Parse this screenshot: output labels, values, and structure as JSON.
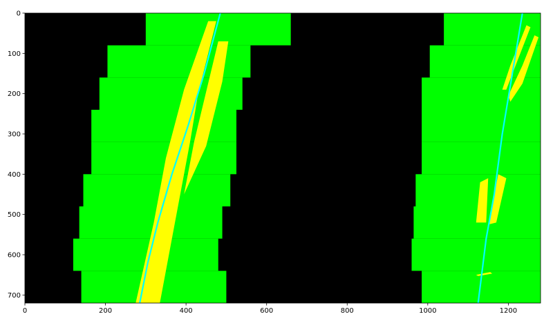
{
  "chart_data": {
    "type": "image",
    "description_free": true,
    "x_ticks": [
      "0",
      "200",
      "400",
      "600",
      "800",
      "1000",
      "1200"
    ],
    "y_ticks": [
      "0",
      "100",
      "200",
      "300",
      "400",
      "500",
      "600",
      "700"
    ],
    "xlim": [
      0,
      1280
    ],
    "ylim": [
      720,
      0
    ],
    "y_inverted": true,
    "grid": false,
    "colors": {
      "background": "#000000",
      "window": "#00ff00",
      "lane_pixels": "#ffff00",
      "fit_line": "#00ffff",
      "axis": "#000000"
    },
    "search_windows": {
      "left": [
        {
          "y_range": [
            0,
            80
          ],
          "x_range": [
            300,
            660
          ]
        },
        {
          "y_range": [
            80,
            160
          ],
          "x_range": [
            205,
            560
          ]
        },
        {
          "y_range": [
            160,
            240
          ],
          "x_range": [
            185,
            540
          ]
        },
        {
          "y_range": [
            240,
            320
          ],
          "x_range": [
            165,
            525
          ]
        },
        {
          "y_range": [
            320,
            400
          ],
          "x_range": [
            165,
            525
          ]
        },
        {
          "y_range": [
            400,
            480
          ],
          "x_range": [
            145,
            510
          ]
        },
        {
          "y_range": [
            480,
            560
          ],
          "x_range": [
            135,
            490
          ]
        },
        {
          "y_range": [
            560,
            640
          ],
          "x_range": [
            120,
            480
          ]
        },
        {
          "y_range": [
            640,
            720
          ],
          "x_range": [
            140,
            500
          ]
        }
      ],
      "right": [
        {
          "y_range": [
            0,
            80
          ],
          "x_range": [
            1040,
            1280
          ]
        },
        {
          "y_range": [
            80,
            160
          ],
          "x_range": [
            1005,
            1280
          ]
        },
        {
          "y_range": [
            160,
            240
          ],
          "x_range": [
            985,
            1280
          ]
        },
        {
          "y_range": [
            240,
            320
          ],
          "x_range": [
            985,
            1280
          ]
        },
        {
          "y_range": [
            320,
            400
          ],
          "x_range": [
            985,
            1280
          ]
        },
        {
          "y_range": [
            400,
            480
          ],
          "x_range": [
            970,
            1280
          ]
        },
        {
          "y_range": [
            480,
            560
          ],
          "x_range": [
            965,
            1280
          ]
        },
        {
          "y_range": [
            560,
            640
          ],
          "x_range": [
            960,
            1280
          ]
        },
        {
          "y_range": [
            640,
            720
          ],
          "x_range": [
            985,
            1280
          ]
        }
      ]
    },
    "fit_lines": {
      "left": [
        [
          485,
          0
        ],
        [
          445,
          150
        ],
        [
          405,
          280
        ],
        [
          365,
          400
        ],
        [
          330,
          520
        ],
        [
          305,
          620
        ],
        [
          285,
          720
        ]
      ],
      "right": [
        [
          1235,
          0
        ],
        [
          1210,
          150
        ],
        [
          1185,
          300
        ],
        [
          1165,
          450
        ],
        [
          1145,
          560
        ],
        [
          1125,
          720
        ]
      ]
    },
    "lane_pixel_regions": {
      "left": [
        [
          [
            455,
            20
          ],
          [
            475,
            20
          ],
          [
            430,
            200
          ],
          [
            410,
            320
          ],
          [
            335,
            720
          ],
          [
            275,
            720
          ],
          [
            320,
            520
          ],
          [
            350,
            360
          ],
          [
            395,
            190
          ]
        ],
        [
          [
            480,
            70
          ],
          [
            505,
            70
          ],
          [
            490,
            170
          ],
          [
            450,
            330
          ],
          [
            395,
            450
          ],
          [
            420,
            320
          ]
        ]
      ],
      "right": [
        [
          [
            1245,
            30
          ],
          [
            1255,
            35
          ],
          [
            1220,
            125
          ],
          [
            1195,
            190
          ],
          [
            1185,
            190
          ],
          [
            1205,
            130
          ]
        ],
        [
          [
            1265,
            55
          ],
          [
            1275,
            60
          ],
          [
            1235,
            175
          ],
          [
            1205,
            220
          ],
          [
            1200,
            205
          ],
          [
            1235,
            130
          ]
        ],
        [
          [
            1130,
            420
          ],
          [
            1150,
            410
          ],
          [
            1145,
            520
          ],
          [
            1120,
            520
          ]
        ],
        [
          [
            1175,
            400
          ],
          [
            1195,
            410
          ],
          [
            1170,
            520
          ],
          [
            1150,
            525
          ]
        ],
        [
          [
            1120,
            650
          ],
          [
            1155,
            643
          ],
          [
            1160,
            647
          ],
          [
            1125,
            653
          ]
        ]
      ]
    }
  }
}
